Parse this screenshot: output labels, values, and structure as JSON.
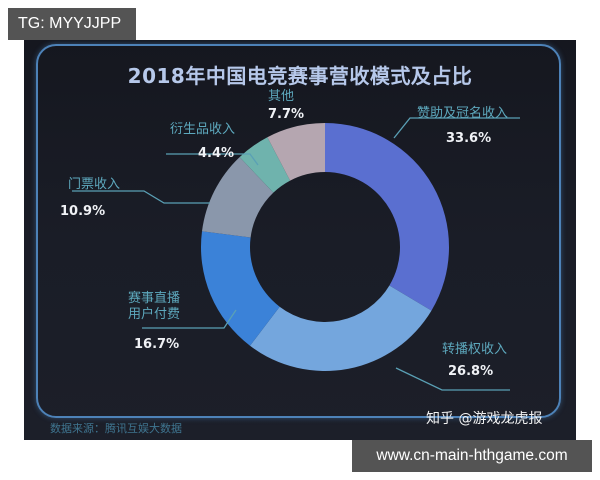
{
  "overlay": {
    "top_tag": "TG: MYYJJPP",
    "bottom_tag": "www.cn-main-hthgame.com"
  },
  "chart": {
    "title": "2018年中国电竞赛事营收模式及占比",
    "source": "数据来源：腾讯互娱大数据",
    "watermark": "知乎 @游戏龙虎报",
    "labels": {
      "sponsorship": {
        "name": "赞助及冠名收入",
        "pct": "33.6%"
      },
      "broadcast": {
        "name": "转播权收入",
        "pct": "26.8%"
      },
      "live_stream_line1": "赛事直播",
      "live_stream_line2": "用户付费",
      "live_stream_pct": "16.7%",
      "tickets": {
        "name": "门票收入",
        "pct": "10.9%"
      },
      "merch": {
        "name": "衍生品收入",
        "pct": "4.4%"
      },
      "other": {
        "name": "其他",
        "pct": "7.7%"
      }
    }
  },
  "chart_data": {
    "type": "pie",
    "subtype": "donut",
    "title": "2018年中国电竞赛事营收模式及占比",
    "categories": [
      "赞助及冠名收入",
      "转播权收入",
      "赛事直播用户付费",
      "门票收入",
      "衍生品收入",
      "其他"
    ],
    "values": [
      33.6,
      26.8,
      16.7,
      10.9,
      4.4,
      7.7
    ],
    "unit": "%",
    "colors": [
      "#5a6fd0",
      "#74a6dd",
      "#3b82d8",
      "#8a97ab",
      "#6fb3ad",
      "#b5a6b0"
    ],
    "start_angle": "12 o'clock, clockwise",
    "source": "数据来源：腾讯互娱大数据",
    "legend": "none (leader-line labels)"
  }
}
